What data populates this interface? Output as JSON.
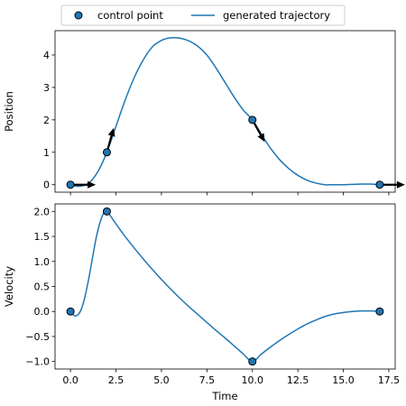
{
  "chart_data": [
    {
      "type": "line",
      "panel": "top",
      "xlabel": "",
      "ylabel": "Position",
      "xlim": [
        -0.85,
        17.85
      ],
      "ylim": [
        -0.23,
        4.75
      ],
      "xticks": [
        0.0,
        2.5,
        5.0,
        7.5,
        10.0,
        12.5,
        15.0,
        17.5
      ],
      "yticks": [
        0,
        1,
        2,
        3,
        4
      ],
      "ytick_labels": [
        "0",
        "1",
        "2",
        "3",
        "4"
      ],
      "control_points": [
        {
          "t": 0,
          "position": 0,
          "velocity": 0
        },
        {
          "t": 2,
          "position": 1,
          "velocity": 2
        },
        {
          "t": 10,
          "position": 2,
          "velocity": -1
        },
        {
          "t": 17,
          "position": 0,
          "velocity": 0
        }
      ],
      "series": [
        {
          "label": "generated trajectory",
          "x": [
            0,
            0.5,
            1,
            1.5,
            2,
            2.5,
            3,
            3.5,
            4,
            4.5,
            5,
            5.5,
            6,
            6.5,
            7,
            7.5,
            8,
            8.5,
            9,
            9.5,
            10,
            10.5,
            11,
            11.5,
            12,
            12.5,
            13,
            13.5,
            14,
            14.5,
            15,
            15.5,
            16,
            16.5,
            17
          ],
          "y": [
            0,
            -0.05,
            0.05,
            0.4,
            1.0,
            1.8,
            2.6,
            3.3,
            3.85,
            4.25,
            4.45,
            4.53,
            4.52,
            4.44,
            4.27,
            4.0,
            3.6,
            3.15,
            2.7,
            2.3,
            2.0,
            1.55,
            1.12,
            0.77,
            0.5,
            0.29,
            0.14,
            0.05,
            0.0,
            0.0,
            0.0,
            0.01,
            0.02,
            0.02,
            0.0
          ]
        }
      ]
    },
    {
      "type": "line",
      "panel": "bottom",
      "xlabel": "Time",
      "ylabel": "Velocity",
      "xlim": [
        -0.85,
        17.85
      ],
      "ylim": [
        -1.15,
        2.15
      ],
      "xticks": [
        0.0,
        2.5,
        5.0,
        7.5,
        10.0,
        12.5,
        15.0,
        17.5
      ],
      "xtick_labels": [
        "0.0",
        "2.5",
        "5.0",
        "7.5",
        "10.0",
        "12.5",
        "15.0",
        "17.5"
      ],
      "yticks": [
        -1.0,
        -0.5,
        0.0,
        0.5,
        1.0,
        1.5,
        2.0
      ],
      "ytick_labels": [
        "−1.0",
        "−0.5",
        "0.0",
        "0.5",
        "1.0",
        "1.5",
        "2.0"
      ],
      "control_points": [
        {
          "t": 0,
          "velocity": 0
        },
        {
          "t": 2,
          "velocity": 2
        },
        {
          "t": 10,
          "velocity": -1
        },
        {
          "t": 17,
          "velocity": 0
        }
      ],
      "series": [
        {
          "label": "generated trajectory",
          "x": [
            0,
            0.2,
            0.4,
            0.6,
            0.8,
            1.0,
            1.2,
            1.4,
            1.6,
            1.8,
            2.0,
            2.5,
            3,
            3.5,
            4,
            4.5,
            5,
            5.5,
            6,
            6.5,
            7,
            7.5,
            8,
            8.5,
            9,
            9.5,
            10,
            10.5,
            11,
            11.5,
            12,
            12.5,
            13,
            13.5,
            14,
            14.5,
            15,
            15.5,
            16,
            16.5,
            17
          ],
          "y": [
            0,
            -0.08,
            -0.07,
            0.05,
            0.3,
            0.65,
            1.05,
            1.45,
            1.75,
            1.95,
            2.0,
            1.75,
            1.5,
            1.27,
            1.05,
            0.84,
            0.64,
            0.45,
            0.27,
            0.1,
            -0.06,
            -0.22,
            -0.38,
            -0.53,
            -0.69,
            -0.85,
            -1.0,
            -0.85,
            -0.71,
            -0.58,
            -0.46,
            -0.35,
            -0.25,
            -0.17,
            -0.1,
            -0.05,
            -0.02,
            0.0,
            0.01,
            0.01,
            0.0
          ]
        }
      ]
    }
  ],
  "legend": {
    "placement": "top-center",
    "entries": [
      {
        "label": "control point",
        "marker": "circle"
      },
      {
        "label": "generated trajectory",
        "marker": "line"
      }
    ]
  },
  "colors": {
    "series": "#1f77b4",
    "marker_edge": "#000000",
    "arrow": "#000000"
  }
}
